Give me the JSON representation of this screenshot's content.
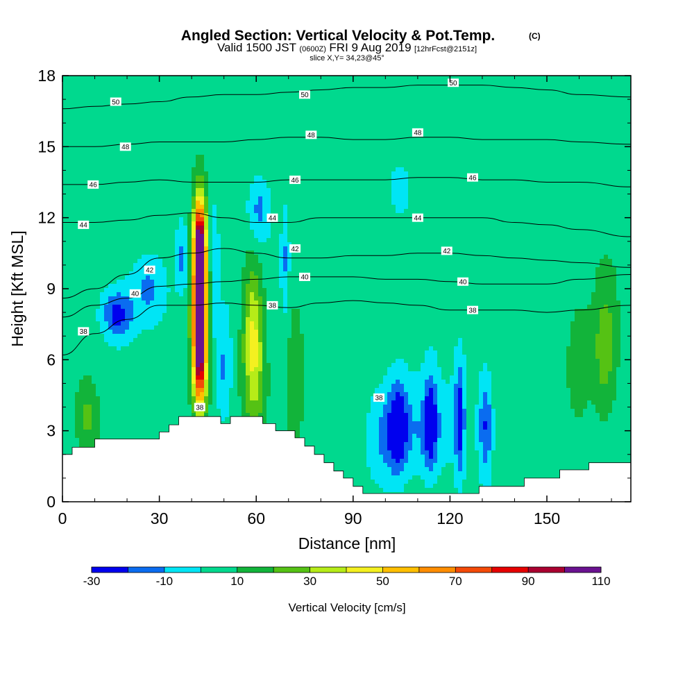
{
  "chart_data": {
    "type": "heatmap",
    "title": "Angled Section: Vertical Velocity & Pot.Temp.",
    "title_unit": "(C)",
    "subtitle": {
      "prefix": "Valid 1500 JST",
      "zulu": "(0600Z)",
      "date": "FRI 9 Aug 2019",
      "forecast": "[12hrFcst@2151z]"
    },
    "slice_label": "slice X,Y= 34,23@45°",
    "xlabel": "Distance [nm]",
    "ylabel": "Height [Kft MSL]",
    "xlim": [
      0,
      176
    ],
    "ylim": [
      0,
      18
    ],
    "xticks": [
      0,
      30,
      60,
      90,
      120,
      150
    ],
    "yticks": [
      0,
      3,
      6,
      9,
      12,
      15,
      18
    ],
    "colorbar": {
      "label": "Vertical Velocity [cm/s]",
      "levels": [
        -30,
        -20,
        -10,
        0,
        10,
        20,
        30,
        40,
        50,
        60,
        70,
        80,
        90,
        100,
        110
      ],
      "tick_labels": [
        -30,
        -10,
        10,
        30,
        50,
        70,
        90,
        110
      ],
      "colors": [
        "#0000ee",
        "#0a6cf0",
        "#00e5f5",
        "#00d98e",
        "#12b43a",
        "#55c214",
        "#b6ec18",
        "#f4f020",
        "#ffbf00",
        "#ff8d00",
        "#f44a08",
        "#e60000",
        "#aa0030",
        "#6a1290"
      ]
    },
    "terrain": [
      {
        "x": 0,
        "top": 2.0
      },
      {
        "x": 3,
        "top": 2.3
      },
      {
        "x": 10,
        "top": 2.65
      },
      {
        "x": 30,
        "top": 2.95
      },
      {
        "x": 33,
        "top": 3.25
      },
      {
        "x": 36,
        "top": 3.6
      },
      {
        "x": 49,
        "top": 3.3
      },
      {
        "x": 52,
        "top": 3.6
      },
      {
        "x": 62,
        "top": 3.3
      },
      {
        "x": 66,
        "top": 3.0
      },
      {
        "x": 72,
        "top": 2.7
      },
      {
        "x": 75,
        "top": 2.35
      },
      {
        "x": 78,
        "top": 2.0
      },
      {
        "x": 81,
        "top": 1.65
      },
      {
        "x": 84,
        "top": 1.3
      },
      {
        "x": 87,
        "top": 1.0
      },
      {
        "x": 90,
        "top": 0.65
      },
      {
        "x": 93,
        "top": 0.35
      },
      {
        "x": 129,
        "top": 0.65
      },
      {
        "x": 143,
        "top": 1.0
      },
      {
        "x": 154,
        "top": 1.35
      },
      {
        "x": 163,
        "top": 1.65
      },
      {
        "x": 176,
        "top": 1.65
      }
    ],
    "theta_contours": [
      {
        "level": 38,
        "points": [
          [
            0,
            6.2
          ],
          [
            10,
            7.1
          ],
          [
            20,
            7.7
          ],
          [
            30,
            8.3
          ],
          [
            40,
            8.3
          ],
          [
            50,
            8.4
          ],
          [
            60,
            8.3
          ],
          [
            70,
            8.2
          ],
          [
            80,
            8.4
          ],
          [
            90,
            8.5
          ],
          [
            100,
            8.4
          ],
          [
            110,
            8.3
          ],
          [
            120,
            8.1
          ],
          [
            130,
            8.1
          ],
          [
            140,
            8.1
          ],
          [
            150,
            8.0
          ],
          [
            160,
            8.1
          ],
          [
            176,
            8.3
          ]
        ]
      },
      {
        "level": 40,
        "points": [
          [
            0,
            7.8
          ],
          [
            10,
            8.3
          ],
          [
            20,
            8.6
          ],
          [
            30,
            9.1
          ],
          [
            40,
            9.2
          ],
          [
            50,
            9.3
          ],
          [
            60,
            9.4
          ],
          [
            70,
            9.5
          ],
          [
            80,
            9.5
          ],
          [
            90,
            9.5
          ],
          [
            100,
            9.4
          ],
          [
            110,
            9.4
          ],
          [
            120,
            9.3
          ],
          [
            130,
            9.2
          ],
          [
            140,
            9.2
          ],
          [
            150,
            9.2
          ],
          [
            160,
            9.4
          ],
          [
            176,
            9.6
          ]
        ]
      },
      {
        "level": 42,
        "points": [
          [
            0,
            8.6
          ],
          [
            10,
            9.0
          ],
          [
            20,
            9.6
          ],
          [
            30,
            10.3
          ],
          [
            40,
            10.5
          ],
          [
            50,
            10.7
          ],
          [
            60,
            10.5
          ],
          [
            70,
            10.3
          ],
          [
            80,
            10.3
          ],
          [
            90,
            10.4
          ],
          [
            100,
            10.4
          ],
          [
            110,
            10.5
          ],
          [
            120,
            10.5
          ],
          [
            130,
            10.4
          ],
          [
            140,
            10.3
          ],
          [
            150,
            10.2
          ],
          [
            160,
            10.1
          ],
          [
            176,
            9.9
          ]
        ]
      },
      {
        "level": 44,
        "points": [
          [
            0,
            11.8
          ],
          [
            10,
            11.8
          ],
          [
            20,
            11.9
          ],
          [
            30,
            12.1
          ],
          [
            40,
            12.2
          ],
          [
            50,
            12.0
          ],
          [
            60,
            11.8
          ],
          [
            70,
            11.8
          ],
          [
            80,
            12.0
          ],
          [
            90,
            12.0
          ],
          [
            100,
            12.0
          ],
          [
            110,
            12.0
          ],
          [
            120,
            12.0
          ],
          [
            130,
            12.0
          ],
          [
            140,
            11.8
          ],
          [
            150,
            11.7
          ],
          [
            160,
            11.5
          ],
          [
            176,
            11.2
          ]
        ]
      },
      {
        "level": 46,
        "points": [
          [
            0,
            13.4
          ],
          [
            10,
            13.4
          ],
          [
            20,
            13.5
          ],
          [
            30,
            13.6
          ],
          [
            40,
            13.5
          ],
          [
            50,
            13.5
          ],
          [
            60,
            13.5
          ],
          [
            70,
            13.6
          ],
          [
            80,
            13.6
          ],
          [
            90,
            13.6
          ],
          [
            100,
            13.6
          ],
          [
            110,
            13.7
          ],
          [
            120,
            13.7
          ],
          [
            130,
            13.6
          ],
          [
            140,
            13.6
          ],
          [
            150,
            13.5
          ],
          [
            160,
            13.5
          ],
          [
            176,
            13.3
          ]
        ]
      },
      {
        "level": 48,
        "points": [
          [
            0,
            15.0
          ],
          [
            10,
            15.0
          ],
          [
            20,
            15.1
          ],
          [
            30,
            15.2
          ],
          [
            40,
            15.2
          ],
          [
            50,
            15.2
          ],
          [
            60,
            15.3
          ],
          [
            70,
            15.4
          ],
          [
            80,
            15.4
          ],
          [
            90,
            15.3
          ],
          [
            100,
            15.3
          ],
          [
            110,
            15.4
          ],
          [
            120,
            15.4
          ],
          [
            130,
            15.3
          ],
          [
            140,
            15.3
          ],
          [
            150,
            15.3
          ],
          [
            160,
            15.2
          ],
          [
            176,
            15.1
          ]
        ]
      },
      {
        "level": 50,
        "points": [
          [
            0,
            16.6
          ],
          [
            10,
            16.7
          ],
          [
            20,
            16.8
          ],
          [
            30,
            16.9
          ],
          [
            40,
            17.1
          ],
          [
            50,
            17.2
          ],
          [
            60,
            17.2
          ],
          [
            70,
            17.3
          ],
          [
            80,
            17.4
          ],
          [
            90,
            17.5
          ],
          [
            100,
            17.5
          ],
          [
            110,
            17.6
          ],
          [
            120,
            17.6
          ],
          [
            130,
            17.6
          ],
          [
            140,
            17.5
          ],
          [
            150,
            17.4
          ],
          [
            160,
            17.2
          ],
          [
            176,
            17.1
          ]
        ]
      }
    ],
    "theta_labels": [
      {
        "text": "50",
        "x": 16.5,
        "y": 16.9
      },
      {
        "text": "50",
        "x": 75,
        "y": 17.2
      },
      {
        "text": "50",
        "x": 121,
        "y": 17.7
      },
      {
        "text": "48",
        "x": 19.5,
        "y": 15.0
      },
      {
        "text": "48",
        "x": 77,
        "y": 15.5
      },
      {
        "text": "48",
        "x": 110,
        "y": 15.6
      },
      {
        "text": "46",
        "x": 9.5,
        "y": 13.4
      },
      {
        "text": "46",
        "x": 72,
        "y": 13.6
      },
      {
        "text": "46",
        "x": 127,
        "y": 13.7
      },
      {
        "text": "44",
        "x": 6.5,
        "y": 11.7
      },
      {
        "text": "44",
        "x": 65,
        "y": 12.0
      },
      {
        "text": "44",
        "x": 110,
        "y": 12.0
      },
      {
        "text": "42",
        "x": 27,
        "y": 9.8
      },
      {
        "text": "42",
        "x": 72,
        "y": 10.7
      },
      {
        "text": "42",
        "x": 119,
        "y": 10.6
      },
      {
        "text": "40",
        "x": 22.5,
        "y": 8.8
      },
      {
        "text": "40",
        "x": 75,
        "y": 9.5
      },
      {
        "text": "40",
        "x": 124,
        "y": 9.3
      },
      {
        "text": "38",
        "x": 6.5,
        "y": 7.2
      },
      {
        "text": "38",
        "x": 65,
        "y": 8.3
      },
      {
        "text": "38",
        "x": 127,
        "y": 8.1
      },
      {
        "text": "38",
        "x": 42.5,
        "y": 4.0
      },
      {
        "text": "38",
        "x": 98,
        "y": 4.4
      }
    ],
    "w_features": [
      {
        "x": 42.5,
        "y": 8.5,
        "sx": 1.6,
        "sy": 2.6,
        "peak": 100
      },
      {
        "x": 42.5,
        "y": 11.0,
        "sx": 1.2,
        "sy": 1.2,
        "peak": 55
      },
      {
        "x": 42.5,
        "y": 6.0,
        "sx": 1.4,
        "sy": 1.5,
        "peak": 45
      },
      {
        "x": 59,
        "y": 7.2,
        "sx": 2.2,
        "sy": 2.2,
        "peak": 34
      },
      {
        "x": 60,
        "y": 5.0,
        "sx": 2.5,
        "sy": 1.8,
        "peak": 12
      },
      {
        "x": 168,
        "y": 6.5,
        "sx": 2.5,
        "sy": 2.0,
        "peak": 22
      },
      {
        "x": 8,
        "y": 3.6,
        "sx": 2.3,
        "sy": 1.0,
        "peak": 17
      },
      {
        "x": 72,
        "y": 5.0,
        "sx": 2.0,
        "sy": 2.5,
        "peak": 13
      },
      {
        "x": 160,
        "y": 6.0,
        "sx": 3.0,
        "sy": 2.0,
        "peak": 11
      },
      {
        "x": 17,
        "y": 7.9,
        "sx": 3.2,
        "sy": 0.7,
        "peak": -29
      },
      {
        "x": 27,
        "y": 9.0,
        "sx": 4.0,
        "sy": 1.0,
        "peak": -18
      },
      {
        "x": 37,
        "y": 10.3,
        "sx": 1.6,
        "sy": 1.1,
        "peak": -18
      },
      {
        "x": 47,
        "y": 9.8,
        "sx": 1.0,
        "sy": 1.8,
        "peak": -15
      },
      {
        "x": 50,
        "y": 5.6,
        "sx": 1.7,
        "sy": 1.7,
        "peak": -17
      },
      {
        "x": 61,
        "y": 12.3,
        "sx": 2.4,
        "sy": 1.0,
        "peak": -18
      },
      {
        "x": 69,
        "y": 10.2,
        "sx": 0.9,
        "sy": 1.6,
        "peak": -15
      },
      {
        "x": 104,
        "y": 3.2,
        "sx": 2.0,
        "sy": 1.3,
        "peak": -29
      },
      {
        "x": 100,
        "y": 2.8,
        "sx": 4.0,
        "sy": 1.5,
        "peak": -17
      },
      {
        "x": 114,
        "y": 3.4,
        "sx": 1.4,
        "sy": 1.4,
        "peak": -27
      },
      {
        "x": 123,
        "y": 3.5,
        "sx": 1.1,
        "sy": 1.7,
        "peak": -29
      },
      {
        "x": 131,
        "y": 3.2,
        "sx": 1.5,
        "sy": 1.5,
        "peak": -25
      },
      {
        "x": 112,
        "y": 3.0,
        "sx": 6.0,
        "sy": 1.4,
        "peak": -14
      },
      {
        "x": 106,
        "y": 13.2,
        "sx": 5.0,
        "sy": 1.6,
        "peak": -6
      },
      {
        "x": 108,
        "y": 9.0,
        "sx": 5.0,
        "sy": 1.5,
        "peak": -3
      }
    ]
  }
}
